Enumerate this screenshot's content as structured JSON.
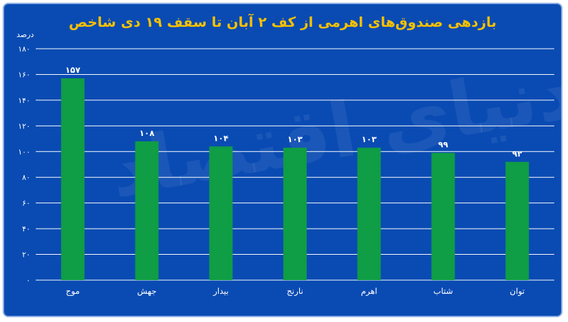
{
  "chart_data": {
    "type": "bar",
    "title": "بازدهی صندوق‌های اهرمی از کف ۲ آبان تا سقف ۱۹ دی شاخص",
    "ylabel": "درصد",
    "xlabel": "",
    "categories": [
      "موج",
      "جهش",
      "بیدار",
      "نارنج",
      "اهرم",
      "شتاب",
      "توان"
    ],
    "values": [
      157,
      108,
      104,
      103,
      103,
      99,
      92
    ],
    "value_labels": [
      "۱۵۷",
      "۱۰۸",
      "۱۰۴",
      "۱۰۳",
      "۱۰۳",
      "۹۹",
      "۹۲"
    ],
    "ylim": [
      0,
      180
    ],
    "yticks": [
      0,
      20,
      40,
      60,
      80,
      100,
      120,
      140,
      160,
      180
    ],
    "ytick_labels": [
      "۰",
      "۲۰",
      "۴۰",
      "۶۰",
      "۸۰",
      "۱۰۰",
      "۱۲۰",
      "۱۴۰",
      "۱۶۰",
      "۱۸۰"
    ],
    "grid": true,
    "colors": {
      "bar": "#0f9d45",
      "background": "#0a4bb3",
      "title": "#f5c000",
      "text": "#ffffff"
    }
  },
  "watermark": "دنیای اقتصاد"
}
